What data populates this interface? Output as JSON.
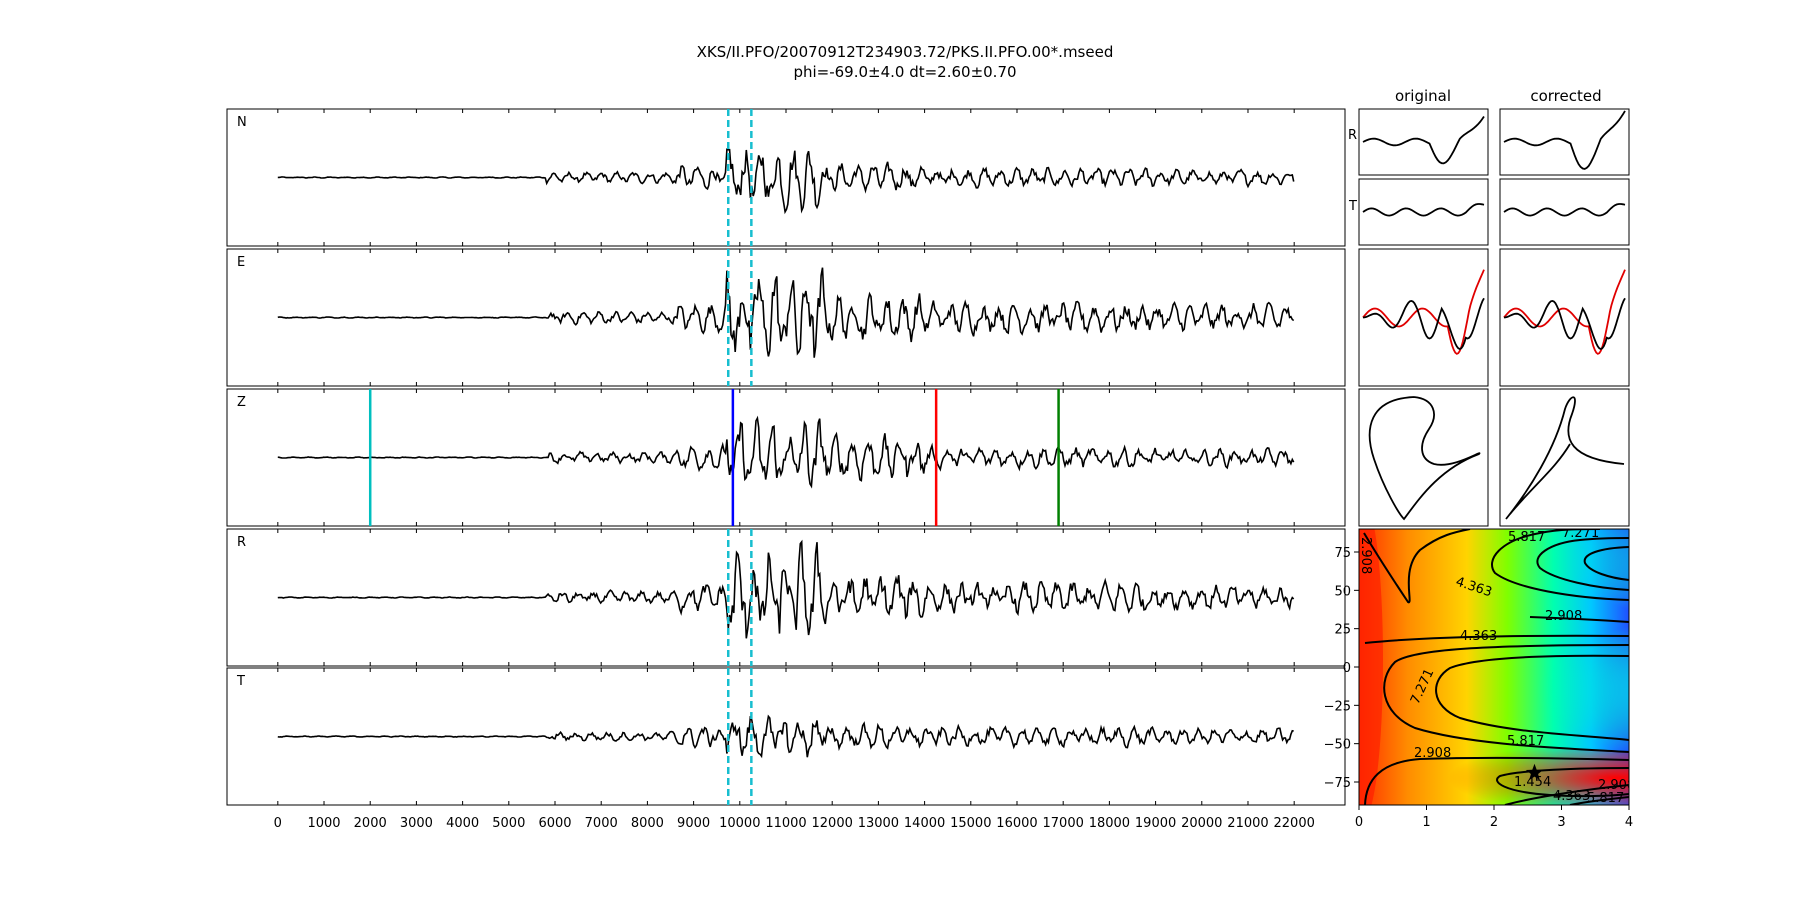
{
  "title": {
    "line1": "XKS/II.PFO/20070912T234903.72/PKS.II.PFO.00*.mseed",
    "line2": "phi=-69.0±4.0 dt=2.60±0.70"
  },
  "chart_data": [
    {
      "type": "line",
      "id": "waveforms",
      "traces": [
        "N",
        "E",
        "Z",
        "R",
        "T"
      ],
      "x_range": [
        -1100,
        23100
      ],
      "x_ticks": [
        "0",
        "1000",
        "2000",
        "3000",
        "4000",
        "5000",
        "6000",
        "7000",
        "8000",
        "9000",
        "10000",
        "11000",
        "12000",
        "13000",
        "14000",
        "15000",
        "16000",
        "17000",
        "18000",
        "19000",
        "20000",
        "21000",
        "22000"
      ],
      "window_markers": {
        "style": "dashed",
        "color": "#17becf",
        "x": [
          9750,
          10250
        ],
        "traces": [
          "N",
          "E",
          "R",
          "T"
        ]
      },
      "phase_markers": [
        {
          "trace": "Z",
          "x": 2000,
          "color": "#00bfbf"
        },
        {
          "trace": "Z",
          "x": 9850,
          "color": "#0000ff"
        },
        {
          "trace": "Z",
          "x": 14250,
          "color": "#ff0000"
        },
        {
          "trace": "Z",
          "x": 16900,
          "color": "#008000"
        }
      ]
    },
    {
      "type": "line",
      "id": "particle-panels",
      "column_titles": [
        "original",
        "corrected"
      ],
      "row_labels": [
        "R",
        "T",
        "",
        ""
      ]
    },
    {
      "type": "heatmap",
      "id": "error-surface",
      "x_range": [
        0,
        4
      ],
      "y_range": [
        -90,
        90
      ],
      "x_ticks": [
        "0",
        "1",
        "2",
        "3",
        "4"
      ],
      "y_ticks": [
        "75",
        "50",
        "25",
        "0",
        "−25",
        "−50",
        "−75"
      ],
      "contour_labels": [
        "1.454",
        "2.908",
        "4.363",
        "5.817",
        "7.271"
      ],
      "best_fit": {
        "dt": 2.6,
        "phi": -69.0
      }
    }
  ]
}
